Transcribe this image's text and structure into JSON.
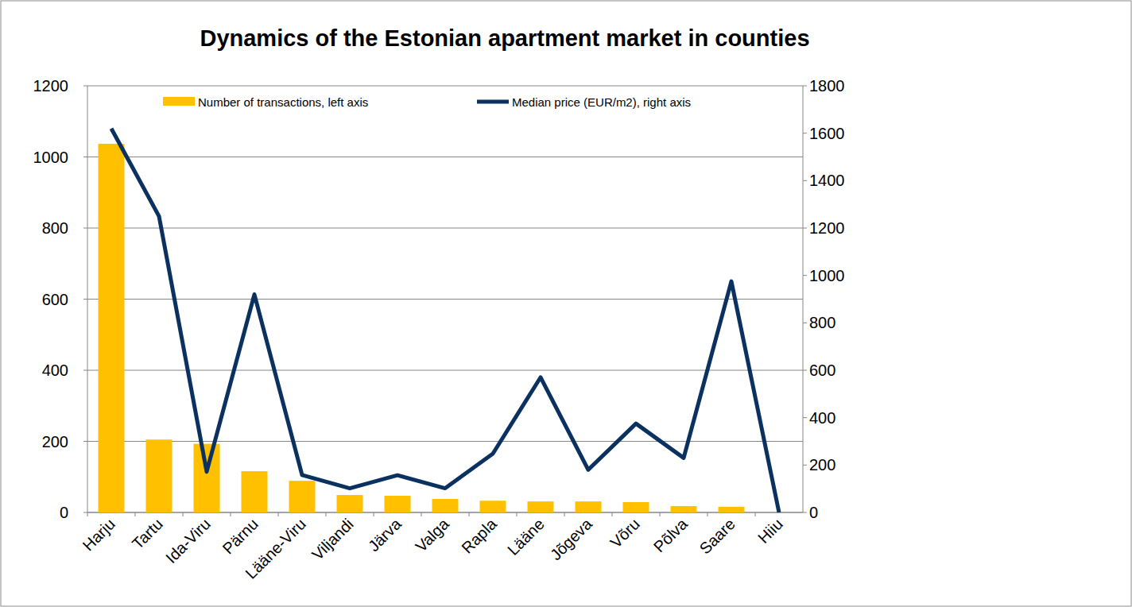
{
  "chart_data": {
    "type": "bar",
    "title": "Dynamics of the Estonian apartment market in counties",
    "categories": [
      "Harju",
      "Tartu",
      "Ida-Viru",
      "Pärnu",
      "Lääne-Viru",
      "Viljandi",
      "Järva",
      "Valga",
      "Rapla",
      "Lääne",
      "Jõgeva",
      "Võru",
      "Põlva",
      "Saare",
      "Hiiu"
    ],
    "series": [
      {
        "name": "Number of transactions, left axis",
        "type": "bar",
        "color": "#ffc000",
        "values": [
          1037,
          205,
          193,
          116,
          89,
          49,
          47,
          38,
          33,
          31,
          31,
          29,
          18,
          16,
          0
        ]
      },
      {
        "name": "Median price (EUR/m2), right axis",
        "type": "line",
        "axis": "y2",
        "color": "#0b3160",
        "values": [
          1620,
          1250,
          172,
          920,
          158,
          102,
          157,
          102,
          248,
          570,
          180,
          375,
          230,
          975,
          0
        ]
      }
    ],
    "ylim": [
      0,
      1200
    ],
    "yticks": [
      0,
      200,
      400,
      600,
      800,
      1000,
      1200
    ],
    "y2lim": [
      0,
      1800
    ],
    "y2ticks": [
      0,
      200,
      400,
      600,
      800,
      1000,
      1200,
      1400,
      1600,
      1800
    ],
    "grid": true,
    "legend": "top"
  }
}
